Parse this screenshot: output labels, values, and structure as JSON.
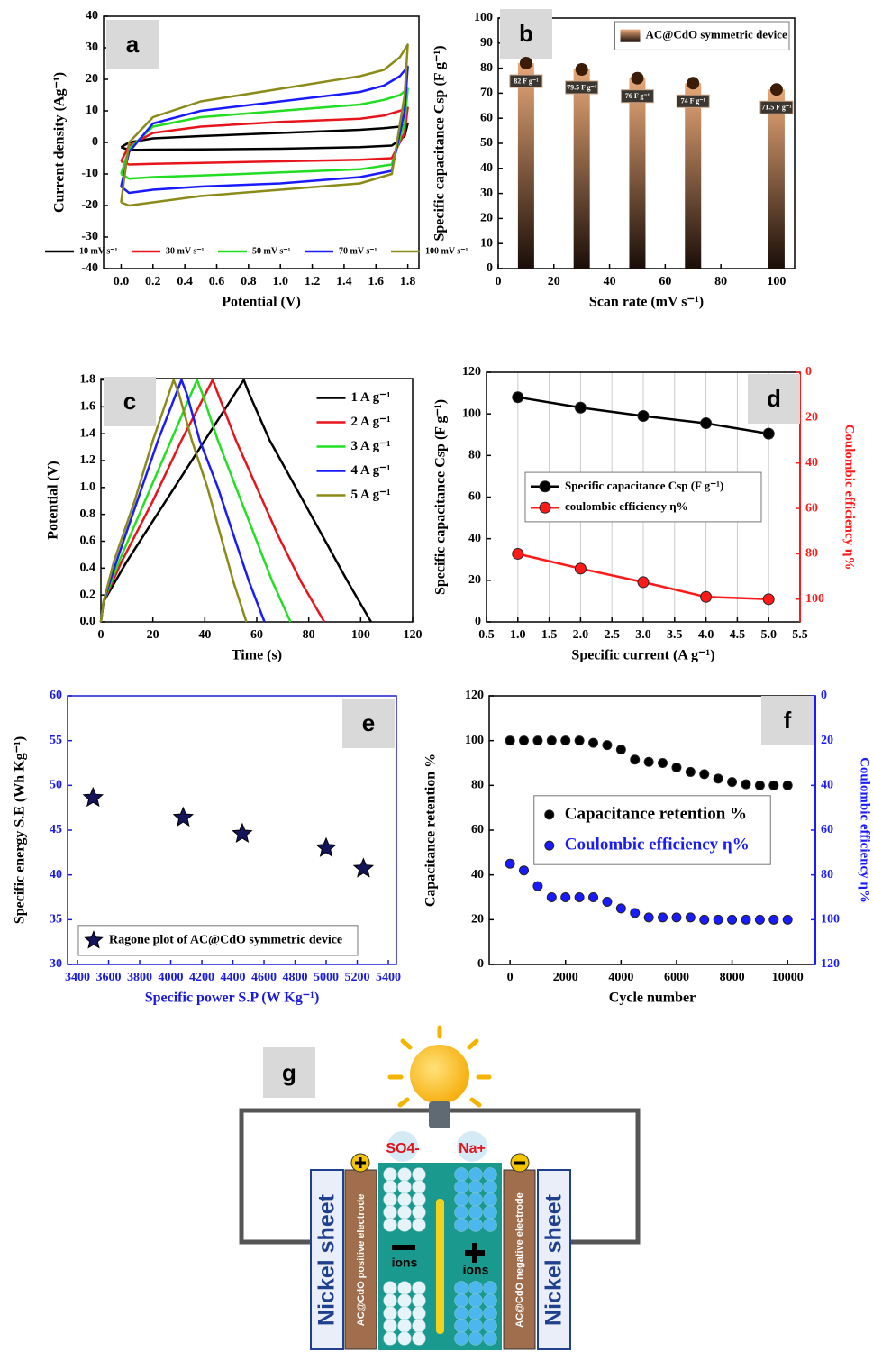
{
  "chart_data": [
    {
      "type": "line",
      "panel": "a",
      "x_label": "Potential (V)",
      "y_label": "Current density (Ag⁻¹)",
      "x": [
        0,
        0.05,
        0.2,
        0.5,
        1.0,
        1.5,
        1.65,
        1.75,
        1.8,
        1.78,
        1.7,
        1.5,
        1.0,
        0.5,
        0.2,
        0.05,
        0
      ],
      "series": [
        {
          "name": "10 mV s⁻¹",
          "color": "#000000",
          "values": [
            -1.5,
            0,
            1.3,
            2,
            3,
            4,
            4.5,
            5,
            6,
            2,
            -1,
            -1.5,
            -2,
            -2.2,
            -2.3,
            -2.4,
            -1.5
          ]
        },
        {
          "name": "30 mV s⁻¹",
          "color": "#e8141c",
          "values": [
            -6,
            -1,
            3,
            5,
            6.5,
            7.5,
            8.5,
            10,
            11,
            3,
            -5,
            -5.5,
            -6,
            -6.5,
            -6.8,
            -7,
            -6
          ]
        },
        {
          "name": "50 mV s⁻¹",
          "color": "#22dd22",
          "values": [
            -10,
            -2,
            5,
            8,
            10,
            12,
            13.5,
            15,
            17,
            6,
            -7,
            -8.5,
            -9.5,
            -10.5,
            -11,
            -11.5,
            -10
          ]
        },
        {
          "name": "70 mV s⁻¹",
          "color": "#1a1aff",
          "values": [
            -14,
            -3,
            6,
            10,
            13,
            16,
            18,
            21,
            24,
            10,
            -9,
            -11,
            -13,
            -14,
            -15,
            -16,
            -14
          ]
        },
        {
          "name": "100 mV s⁻¹",
          "color": "#8b8b1a",
          "values": [
            -19,
            0,
            8,
            13,
            17,
            21,
            23,
            27,
            31,
            15,
            -10,
            -13,
            -15,
            -17,
            -19,
            -20,
            -19
          ]
        }
      ],
      "xlim": [
        -0.11,
        1.87
      ],
      "xticks": [
        {
          "value": 0,
          "label": "0.0"
        },
        0.2,
        0.4,
        0.6,
        0.8,
        {
          "value": 1,
          "label": "1.0"
        },
        1.2,
        1.4,
        1.6,
        1.8
      ],
      "ylim": [
        -40,
        40
      ],
      "yticks": [
        -40,
        -30,
        -20,
        -10,
        0,
        10,
        20,
        30,
        40
      ],
      "legend": "lower center",
      "legend_frame": false
    },
    {
      "type": "bar",
      "panel": "b",
      "x_label": "Scan rate (mV s⁻¹)",
      "y_label": "Specific capacitance Csp (F g⁻¹)",
      "x": [
        10,
        30,
        50,
        70,
        100
      ],
      "series": [
        {
          "name": "AC@CdO symmetric device",
          "color": "#e8a878",
          "values": [
            82,
            79.5,
            76,
            74,
            71.5
          ],
          "value_labels": [
            "82 F g⁻¹",
            "79.5 F g⁻¹",
            "76 F g⁻¹",
            "74 F g⁻¹",
            "71.5 F g⁻¹"
          ]
        }
      ],
      "xlim": [
        0,
        106.5
      ],
      "xticks": [
        0,
        20,
        40,
        60,
        80,
        100
      ],
      "ylim": [
        0,
        100
      ],
      "yticks": [
        0,
        10,
        20,
        30,
        40,
        50,
        60,
        70,
        80,
        90,
        100
      ],
      "legend": "upper right",
      "legend_frame": true
    },
    {
      "type": "line",
      "panel": "c",
      "x_label": "Time (s)",
      "y_label": "Potential (V)",
      "series": [
        {
          "name": "1 A g⁻¹",
          "color": "#000000",
          "x": [
            0,
            1,
            10,
            25,
            40,
            55,
            57,
            65,
            75,
            85,
            95,
            104
          ],
          "values": [
            0,
            0.15,
            0.45,
            0.9,
            1.35,
            1.8,
            1.7,
            1.35,
            1.0,
            0.65,
            0.3,
            0
          ]
        },
        {
          "name": "2 A g⁻¹",
          "color": "#e8141c",
          "x": [
            0,
            1,
            8,
            20,
            31,
            43,
            45,
            52,
            60,
            68,
            77,
            86
          ],
          "values": [
            0,
            0.15,
            0.45,
            0.9,
            1.35,
            1.8,
            1.7,
            1.35,
            1.0,
            0.65,
            0.3,
            0
          ]
        },
        {
          "name": "3 A g⁻¹",
          "color": "#22e022",
          "x": [
            0,
            1,
            7,
            17,
            27,
            37,
            39,
            45,
            52,
            59,
            66,
            73
          ],
          "values": [
            0,
            0.15,
            0.45,
            0.9,
            1.35,
            1.8,
            1.7,
            1.35,
            1.0,
            0.65,
            0.3,
            0
          ]
        },
        {
          "name": "4 A g⁻¹",
          "color": "#1a1aff",
          "x": [
            0,
            1,
            6,
            14,
            22,
            31,
            33,
            38,
            45,
            51,
            57,
            63
          ],
          "values": [
            0,
            0.15,
            0.45,
            0.9,
            1.35,
            1.8,
            1.7,
            1.35,
            1.0,
            0.65,
            0.3,
            0
          ]
        },
        {
          "name": "5 A g⁻¹",
          "color": "#8b8b1a",
          "x": [
            0,
            1,
            5,
            13,
            20,
            28,
            30,
            35,
            41,
            46,
            51,
            56
          ],
          "values": [
            0,
            0.15,
            0.45,
            0.9,
            1.35,
            1.8,
            1.7,
            1.35,
            1.0,
            0.65,
            0.3,
            0
          ]
        }
      ],
      "xlim": [
        0,
        120
      ],
      "xticks": [
        0,
        20,
        40,
        60,
        80,
        100,
        120
      ],
      "ylim": [
        0,
        1.81
      ],
      "yticks": [
        {
          "value": 0,
          "label": "0.0"
        },
        0.2,
        0.4,
        0.6,
        0.8,
        {
          "value": 1,
          "label": "1.0"
        },
        1.2,
        1.4,
        1.6,
        1.8
      ],
      "legend": "upper right",
      "legend_frame": false
    },
    {
      "type": "line",
      "panel": "d",
      "markers": true,
      "grid": true,
      "x_label": "Specific current (A g⁻¹)",
      "y_label": "Specific capacitance Csp (F g⁻¹)",
      "y2_label": "Coulombic efficiency η%",
      "x": [
        1,
        2,
        3,
        4,
        5
      ],
      "series": [
        {
          "name": "Specific capacitance Csp (F g⁻¹)",
          "color": "#000000",
          "values": [
            108,
            103,
            99,
            95.5,
            90.5
          ]
        },
        {
          "name": "coulombic efficiency η%",
          "color": "#ff1a1a",
          "axis": "y2",
          "values": [
            80,
            86.5,
            92.5,
            99,
            100
          ]
        }
      ],
      "xlim": [
        0.5,
        5.5
      ],
      "xticks": [
        0.5,
        {
          "value": 1,
          "label": "1.0"
        },
        1.5,
        {
          "value": 2,
          "label": "2.0"
        },
        2.5,
        {
          "value": 3,
          "label": "3.0"
        },
        3.5,
        {
          "value": 4,
          "label": "4.0"
        },
        4.5,
        {
          "value": 5,
          "label": "5.0"
        },
        5.5
      ],
      "ylim": [
        0,
        120
      ],
      "yticks": [
        0,
        20,
        40,
        60,
        80,
        100,
        120
      ],
      "y2lim": [
        110,
        0
      ],
      "y2ticks": [
        0,
        20,
        40,
        60,
        80,
        100
      ],
      "legend": "center",
      "legend_frame": true
    },
    {
      "type": "scatter",
      "panel": "e",
      "marker": "star",
      "axis_color": "#1a1adb",
      "x_label": "Specific power S.P (W Kg⁻¹)",
      "y_label": "Specific energy S.E (Wh Kg⁻¹)",
      "x": [
        3500,
        4080,
        4460,
        5000,
        5240
      ],
      "series": [
        {
          "name": "Ragone plot of AC@CdO symmetric device",
          "color": "#14145a",
          "values": [
            48.6,
            46.4,
            44.6,
            43,
            40.7
          ]
        }
      ],
      "xlim": [
        3336,
        5452
      ],
      "xticks": [
        3400,
        3600,
        3800,
        4000,
        4200,
        4400,
        4600,
        4800,
        5000,
        5200,
        5400
      ],
      "ylim": [
        30,
        60
      ],
      "yticks": [
        30,
        35,
        40,
        45,
        50,
        55,
        60
      ],
      "legend": "lower left",
      "legend_frame": true
    },
    {
      "type": "scatter",
      "panel": "f",
      "marker": "circle",
      "x_label": "Cycle number",
      "y_label": "Capacitance retention %",
      "y2_label": "Coulombic efficiency η%",
      "x": [
        0,
        500,
        1000,
        1500,
        2000,
        2500,
        3000,
        3500,
        4000,
        4500,
        5000,
        5500,
        6000,
        6500,
        7000,
        7500,
        8000,
        8500,
        9000,
        9500,
        10000
      ],
      "series": [
        {
          "name": "Capacitance retention %",
          "color": "#000000",
          "values": [
            100,
            100,
            100,
            100,
            100,
            100,
            99,
            98,
            96,
            91.5,
            90.5,
            90,
            88,
            86,
            85,
            83,
            81.5,
            80.5,
            80,
            80,
            80
          ]
        },
        {
          "name": "Coulombic efficiency η%",
          "color": "#1a1aff",
          "axis": "y2",
          "values": [
            75,
            78,
            85,
            90,
            90,
            90,
            90,
            92,
            95,
            97,
            99,
            99,
            99,
            99,
            100,
            100,
            100,
            100,
            100,
            100,
            100
          ]
        }
      ],
      "xlim": [
        -750,
        11000
      ],
      "xticks": [
        0,
        2000,
        4000,
        6000,
        8000,
        10000
      ],
      "ylim": [
        0,
        120
      ],
      "yticks": [
        0,
        20,
        40,
        60,
        80,
        100,
        120
      ],
      "y2lim": [
        120,
        0
      ],
      "y2ticks": [
        0,
        20,
        40,
        60,
        80,
        100,
        120
      ],
      "legend": "center",
      "legend_frame": true
    }
  ],
  "diagram": {
    "panel": "g",
    "anion": "SO4-",
    "cation": "Na+",
    "left_sheet": "Nickel sheet",
    "right_sheet": "Nickel sheet",
    "positive_electrode": "AC@CdO positive electrode",
    "negative_electrode": "AC@CdO negative electrode",
    "anion_ions": "ions",
    "cation_ions": "ions"
  }
}
